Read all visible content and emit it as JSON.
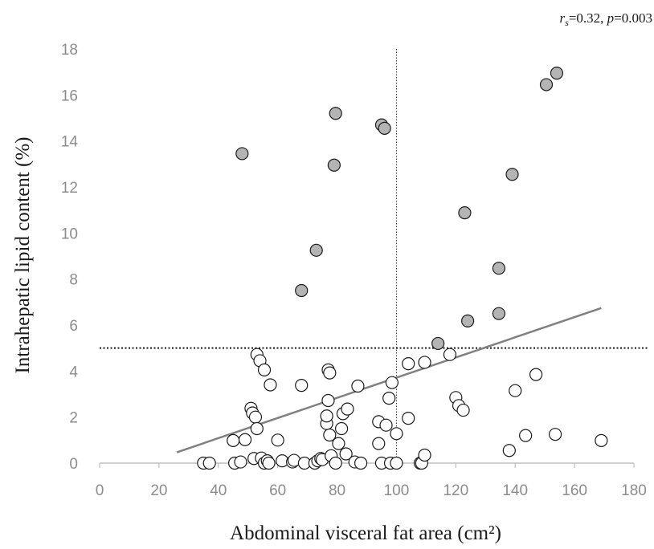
{
  "chart_data": {
    "type": "scatter",
    "title": "",
    "annotation": {
      "r_symbol": "r",
      "r_subscript": "s",
      "r_value_text": "=0.32, ",
      "p_symbol": "p",
      "p_value_text": "=0.003"
    },
    "xlabel": "Abdominal visceral fat area (cm²)",
    "ylabel": "Intrahepatic lipid content (%)",
    "xlim": [
      0,
      180
    ],
    "ylim": [
      0,
      18
    ],
    "xticks": [
      0,
      20,
      40,
      60,
      80,
      100,
      120,
      140,
      160,
      180
    ],
    "yticks": [
      0,
      2,
      4,
      6,
      8,
      10,
      12,
      14,
      16,
      18
    ],
    "reference_lines": {
      "vertical_x": 100,
      "horizontal_y": 5
    },
    "regression_line": {
      "x": [
        26,
        169
      ],
      "y": [
        0.47,
        6.74
      ]
    },
    "colors": {
      "gray_fill": "#b4b4b4",
      "white_fill": "#ffffff",
      "marker_stroke": "#1a1a1a",
      "regression": "#808080",
      "axis": "#bfbfbf"
    },
    "series": [
      {
        "fill": "gray",
        "points": [
          [
            48,
            13.45
          ],
          [
            68,
            7.5
          ],
          [
            73,
            9.25
          ],
          [
            79,
            12.95
          ],
          [
            79.5,
            15.2
          ],
          [
            95,
            14.7
          ],
          [
            96,
            14.55
          ],
          [
            114,
            5.2
          ],
          [
            123,
            10.88
          ],
          [
            124,
            6.18
          ],
          [
            134.5,
            8.47
          ],
          [
            134.5,
            6.5
          ],
          [
            139,
            12.55
          ],
          [
            150.5,
            16.45
          ],
          [
            154,
            16.95
          ]
        ]
      },
      {
        "fill": "white",
        "points": [
          [
            35,
            0
          ],
          [
            37,
            0
          ],
          [
            45,
            0.98
          ],
          [
            45.5,
            0
          ],
          [
            47.5,
            0.05
          ],
          [
            49,
            1.02
          ],
          [
            51,
            2.38
          ],
          [
            51.5,
            2.18
          ],
          [
            52,
            0.2
          ],
          [
            52.5,
            2.0
          ],
          [
            53,
            4.72
          ],
          [
            53,
            1.5
          ],
          [
            54,
            4.45
          ],
          [
            54.5,
            0.22
          ],
          [
            55.5,
            0
          ],
          [
            55.5,
            4.05
          ],
          [
            56.5,
            0.1
          ],
          [
            57,
            0
          ],
          [
            57.5,
            3.4
          ],
          [
            60,
            1.0
          ],
          [
            61.5,
            0.1
          ],
          [
            65,
            0.05
          ],
          [
            65.5,
            0.12
          ],
          [
            68,
            3.38
          ],
          [
            69,
            0
          ],
          [
            72.5,
            0
          ],
          [
            73.5,
            0.1
          ],
          [
            74.5,
            0.2
          ],
          [
            75,
            0.15
          ],
          [
            76.5,
            1.72
          ],
          [
            76.5,
            2.05
          ],
          [
            77,
            2.72
          ],
          [
            77,
            4.05
          ],
          [
            77.5,
            3.92
          ],
          [
            77.5,
            1.22
          ],
          [
            78,
            0.32
          ],
          [
            79.5,
            0
          ],
          [
            80.5,
            0.85
          ],
          [
            81.5,
            1.5
          ],
          [
            82,
            2.15
          ],
          [
            83,
            0.4
          ],
          [
            83.5,
            2.35
          ],
          [
            86,
            0.05
          ],
          [
            87,
            3.35
          ],
          [
            88,
            0
          ],
          [
            94,
            1.8
          ],
          [
            94,
            0.85
          ],
          [
            95,
            0
          ],
          [
            96.5,
            1.65
          ],
          [
            97.5,
            2.82
          ],
          [
            98,
            0
          ],
          [
            98.5,
            3.5
          ],
          [
            100,
            1.28
          ],
          [
            100,
            0
          ],
          [
            104,
            4.32
          ],
          [
            104,
            1.95
          ],
          [
            108,
            0
          ],
          [
            108.5,
            0
          ],
          [
            109.5,
            4.38
          ],
          [
            109.5,
            0.35
          ],
          [
            118,
            4.72
          ],
          [
            120,
            2.85
          ],
          [
            121,
            2.5
          ],
          [
            122.5,
            2.3
          ],
          [
            138,
            0.55
          ],
          [
            140,
            3.15
          ],
          [
            143.5,
            1.2
          ],
          [
            147,
            3.85
          ],
          [
            153.5,
            1.25
          ],
          [
            169,
            0.98
          ]
        ]
      }
    ]
  }
}
